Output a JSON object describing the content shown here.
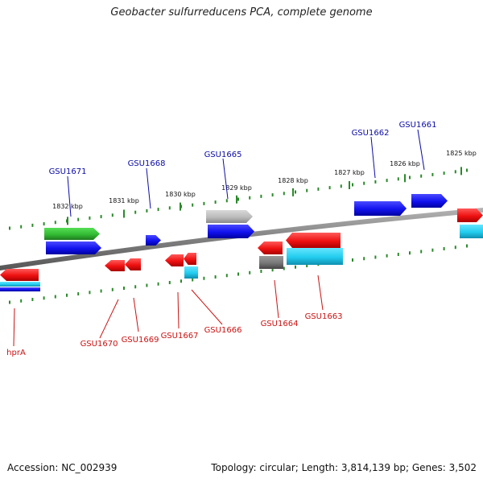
{
  "title": "Geobacter sulfurreducens PCA, complete genome",
  "footer": {
    "accession": "Accession: NC_002939",
    "summary": "Topology: circular; Length: 3,814,139 bp; Genes: 3,502"
  },
  "scale": {
    "ticks": [
      {
        "label": "1832 kbp"
      },
      {
        "label": "1831 kbp"
      },
      {
        "label": "1830 kbp"
      },
      {
        "label": "1829 kbp"
      },
      {
        "label": "1828 kbp"
      },
      {
        "label": "1827 kbp"
      },
      {
        "label": "1826 kbp"
      },
      {
        "label": "1825 kbp"
      }
    ]
  },
  "colors": {
    "forward_label": "#0a0aa8",
    "reverse_label": "#cc1111",
    "tick": "#2a8a2a",
    "backbone": "#808080",
    "red": "#ee1111",
    "blue": "#1111ee",
    "green": "#33bb33",
    "cyan": "#22ccee",
    "gray": "#777777",
    "lightgray": "#bbbbbb"
  },
  "forward_genes": [
    {
      "label": "GSU1671"
    },
    {
      "label": "GSU1668"
    },
    {
      "label": "GSU1665"
    },
    {
      "label": "GSU1662"
    },
    {
      "label": "GSU1661"
    }
  ],
  "reverse_genes": [
    {
      "label": "hprA"
    },
    {
      "label": "GSU1670"
    },
    {
      "label": "GSU1669"
    },
    {
      "label": "GSU1667"
    },
    {
      "label": "GSU1666"
    },
    {
      "label": "GSU1664"
    },
    {
      "label": "GSU1663"
    }
  ]
}
